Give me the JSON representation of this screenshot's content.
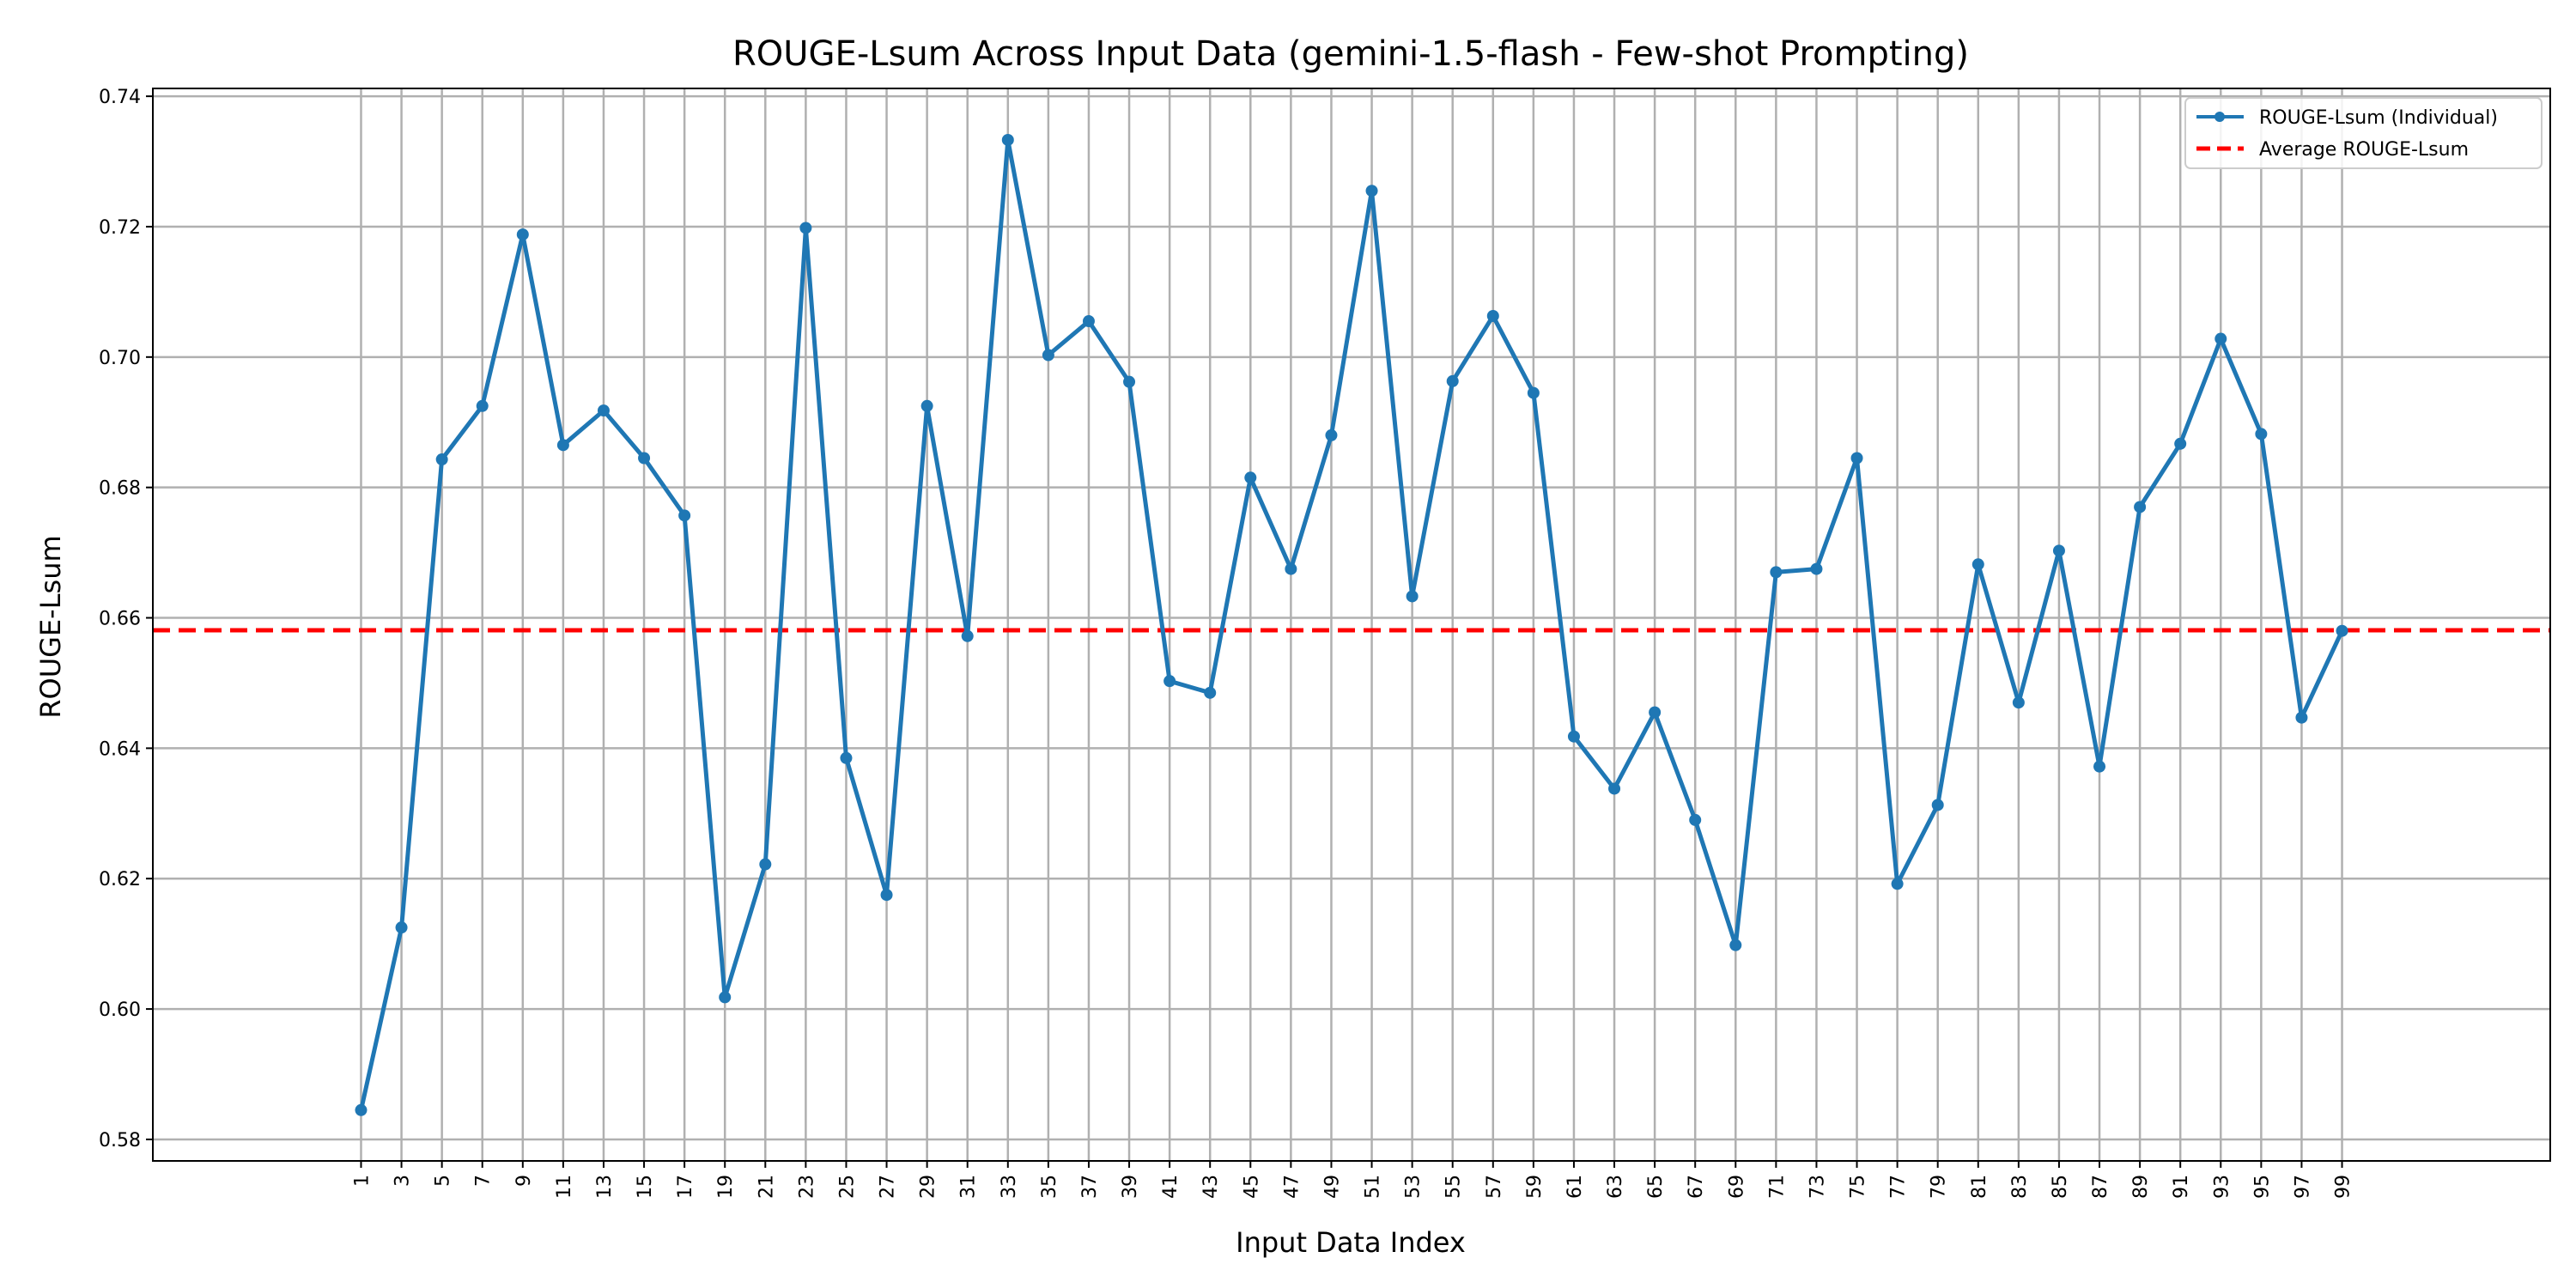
{
  "chart_data": {
    "type": "line",
    "title": "ROUGE-Lsum Across Input Data (gemini-1.5-flash - Few-shot Prompting)",
    "xlabel": "Input Data Index",
    "ylabel": "ROUGE-Lsum",
    "x": [
      1,
      3,
      5,
      7,
      9,
      11,
      13,
      15,
      17,
      19,
      21,
      23,
      25,
      27,
      29,
      31,
      33,
      35,
      37,
      39,
      41,
      43,
      45,
      47,
      49,
      51,
      53,
      55,
      57,
      59,
      61,
      63,
      65,
      67,
      69,
      71,
      73,
      75,
      77,
      79,
      81,
      83,
      85,
      87,
      89,
      91,
      93,
      95,
      97,
      99
    ],
    "xticks": [
      1,
      3,
      5,
      7,
      9,
      11,
      13,
      15,
      17,
      19,
      21,
      23,
      25,
      27,
      29,
      31,
      33,
      35,
      37,
      39,
      41,
      43,
      45,
      47,
      49,
      51,
      53,
      55,
      57,
      59,
      61,
      63,
      65,
      67,
      69,
      71,
      73,
      75,
      77,
      79,
      81,
      83,
      85,
      87,
      89,
      91,
      93,
      95,
      97,
      99
    ],
    "xlim": [
      -9.3,
      109.3
    ],
    "ylim": [
      0.5767,
      0.7412
    ],
    "yticks": [
      0.58,
      0.6,
      0.62,
      0.64,
      0.66,
      0.68,
      0.7,
      0.72,
      0.74
    ],
    "ytick_labels": [
      "0.58",
      "0.60",
      "0.62",
      "0.64",
      "0.66",
      "0.68",
      "0.70",
      "0.72",
      "0.74"
    ],
    "grid": true,
    "legend_position": "top-right",
    "series": [
      {
        "name": "ROUGE-Lsum (Individual)",
        "color": "#1f77b4",
        "style": "solid-with-markers",
        "values": [
          0.5845,
          0.6125,
          0.6843,
          0.6925,
          0.7188,
          0.6865,
          0.6918,
          0.6845,
          0.6757,
          0.6018,
          0.6222,
          0.7198,
          0.6385,
          0.6175,
          0.6925,
          0.6572,
          0.7333,
          0.7003,
          0.7055,
          0.6962,
          0.6503,
          0.6485,
          0.6815,
          0.6675,
          0.688,
          0.7255,
          0.6633,
          0.6963,
          0.7063,
          0.6945,
          0.6418,
          0.6338,
          0.6455,
          0.629,
          0.6098,
          0.667,
          0.6675,
          0.6845,
          0.6192,
          0.6313,
          0.6682,
          0.647,
          0.6703,
          0.6372,
          0.677,
          0.6867,
          0.7028,
          0.6882,
          0.6447,
          0.658
        ]
      },
      {
        "name": "Average ROUGE-Lsum",
        "color": "#ff0000",
        "style": "dashed",
        "constant": 0.6581
      }
    ]
  }
}
